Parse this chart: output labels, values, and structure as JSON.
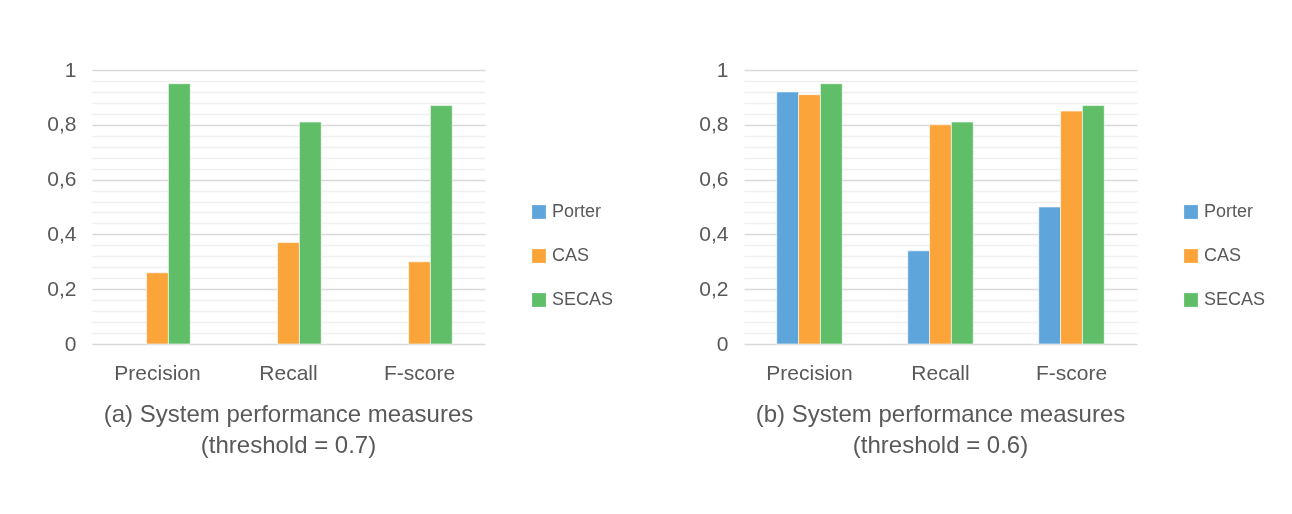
{
  "chart_data": [
    {
      "type": "bar",
      "title": "(a) System performance measures\n(threshold = 0.7)",
      "categories": [
        "Precision",
        "Recall",
        "F-score"
      ],
      "series": [
        {
          "name": "Porter",
          "color": "#5da5da",
          "values": [
            null,
            null,
            null
          ]
        },
        {
          "name": "CAS",
          "color": "#faa43a",
          "values": [
            0.26,
            0.37,
            0.3
          ]
        },
        {
          "name": "SECAS",
          "color": "#60bd68",
          "values": [
            0.95,
            0.81,
            0.87
          ]
        }
      ],
      "ylim": [
        0,
        1
      ],
      "yticks": [
        0,
        {
          "value": 0.04,
          "label": null
        },
        {
          "value": 0.08,
          "label": null
        },
        {
          "value": 0.12,
          "label": null
        },
        {
          "value": 0.16,
          "label": null
        },
        {
          "value": 0.2,
          "label": "0,2"
        },
        {
          "value": 0.24,
          "label": null
        },
        {
          "value": 0.28,
          "label": null
        },
        {
          "value": 0.32,
          "label": null
        },
        {
          "value": 0.36,
          "label": null
        },
        {
          "value": 0.4,
          "label": "0,4"
        },
        {
          "value": 0.44,
          "label": null
        },
        {
          "value": 0.48,
          "label": null
        },
        {
          "value": 0.52,
          "label": null
        },
        {
          "value": 0.56,
          "label": null
        },
        {
          "value": 0.6,
          "label": "0,6"
        },
        {
          "value": 0.64,
          "label": null
        },
        {
          "value": 0.68,
          "label": null
        },
        {
          "value": 0.72,
          "label": null
        },
        {
          "value": 0.76,
          "label": null
        },
        {
          "value": 0.8,
          "label": "0,8"
        },
        {
          "value": 0.84,
          "label": null
        },
        {
          "value": 0.88,
          "label": null
        },
        {
          "value": 0.92,
          "label": null
        },
        {
          "value": 0.96,
          "label": null
        },
        1
      ],
      "grid": "y",
      "legend": "right"
    },
    {
      "type": "bar",
      "title": "(b) System performance measures\n(threshold = 0.6)",
      "categories": [
        "Precision",
        "Recall",
        "F-score"
      ],
      "series": [
        {
          "name": "Porter",
          "color": "#5da5da",
          "values": [
            0.92,
            0.34,
            0.5
          ]
        },
        {
          "name": "CAS",
          "color": "#faa43a",
          "values": [
            0.91,
            0.8,
            0.85
          ]
        },
        {
          "name": "SECAS",
          "color": "#60bd68",
          "values": [
            0.95,
            0.81,
            0.87
          ]
        }
      ],
      "ylim": [
        0,
        1
      ],
      "yticks": [
        0,
        {
          "value": 0.04,
          "label": null
        },
        {
          "value": 0.08,
          "label": null
        },
        {
          "value": 0.12,
          "label": null
        },
        {
          "value": 0.16,
          "label": null
        },
        {
          "value": 0.2,
          "label": "0,2"
        },
        {
          "value": 0.24,
          "label": null
        },
        {
          "value": 0.28,
          "label": null
        },
        {
          "value": 0.32,
          "label": null
        },
        {
          "value": 0.36,
          "label": null
        },
        {
          "value": 0.4,
          "label": "0,4"
        },
        {
          "value": 0.44,
          "label": null
        },
        {
          "value": 0.48,
          "label": null
        },
        {
          "value": 0.52,
          "label": null
        },
        {
          "value": 0.56,
          "label": null
        },
        {
          "value": 0.6,
          "label": "0,6"
        },
        {
          "value": 0.64,
          "label": null
        },
        {
          "value": 0.68,
          "label": null
        },
        {
          "value": 0.72,
          "label": null
        },
        {
          "value": 0.76,
          "label": null
        },
        {
          "value": 0.8,
          "label": "0,8"
        },
        {
          "value": 0.84,
          "label": null
        },
        {
          "value": 0.88,
          "label": null
        },
        {
          "value": 0.92,
          "label": null
        },
        {
          "value": 0.96,
          "label": null
        },
        1
      ],
      "grid": "y",
      "legend": "right"
    }
  ]
}
